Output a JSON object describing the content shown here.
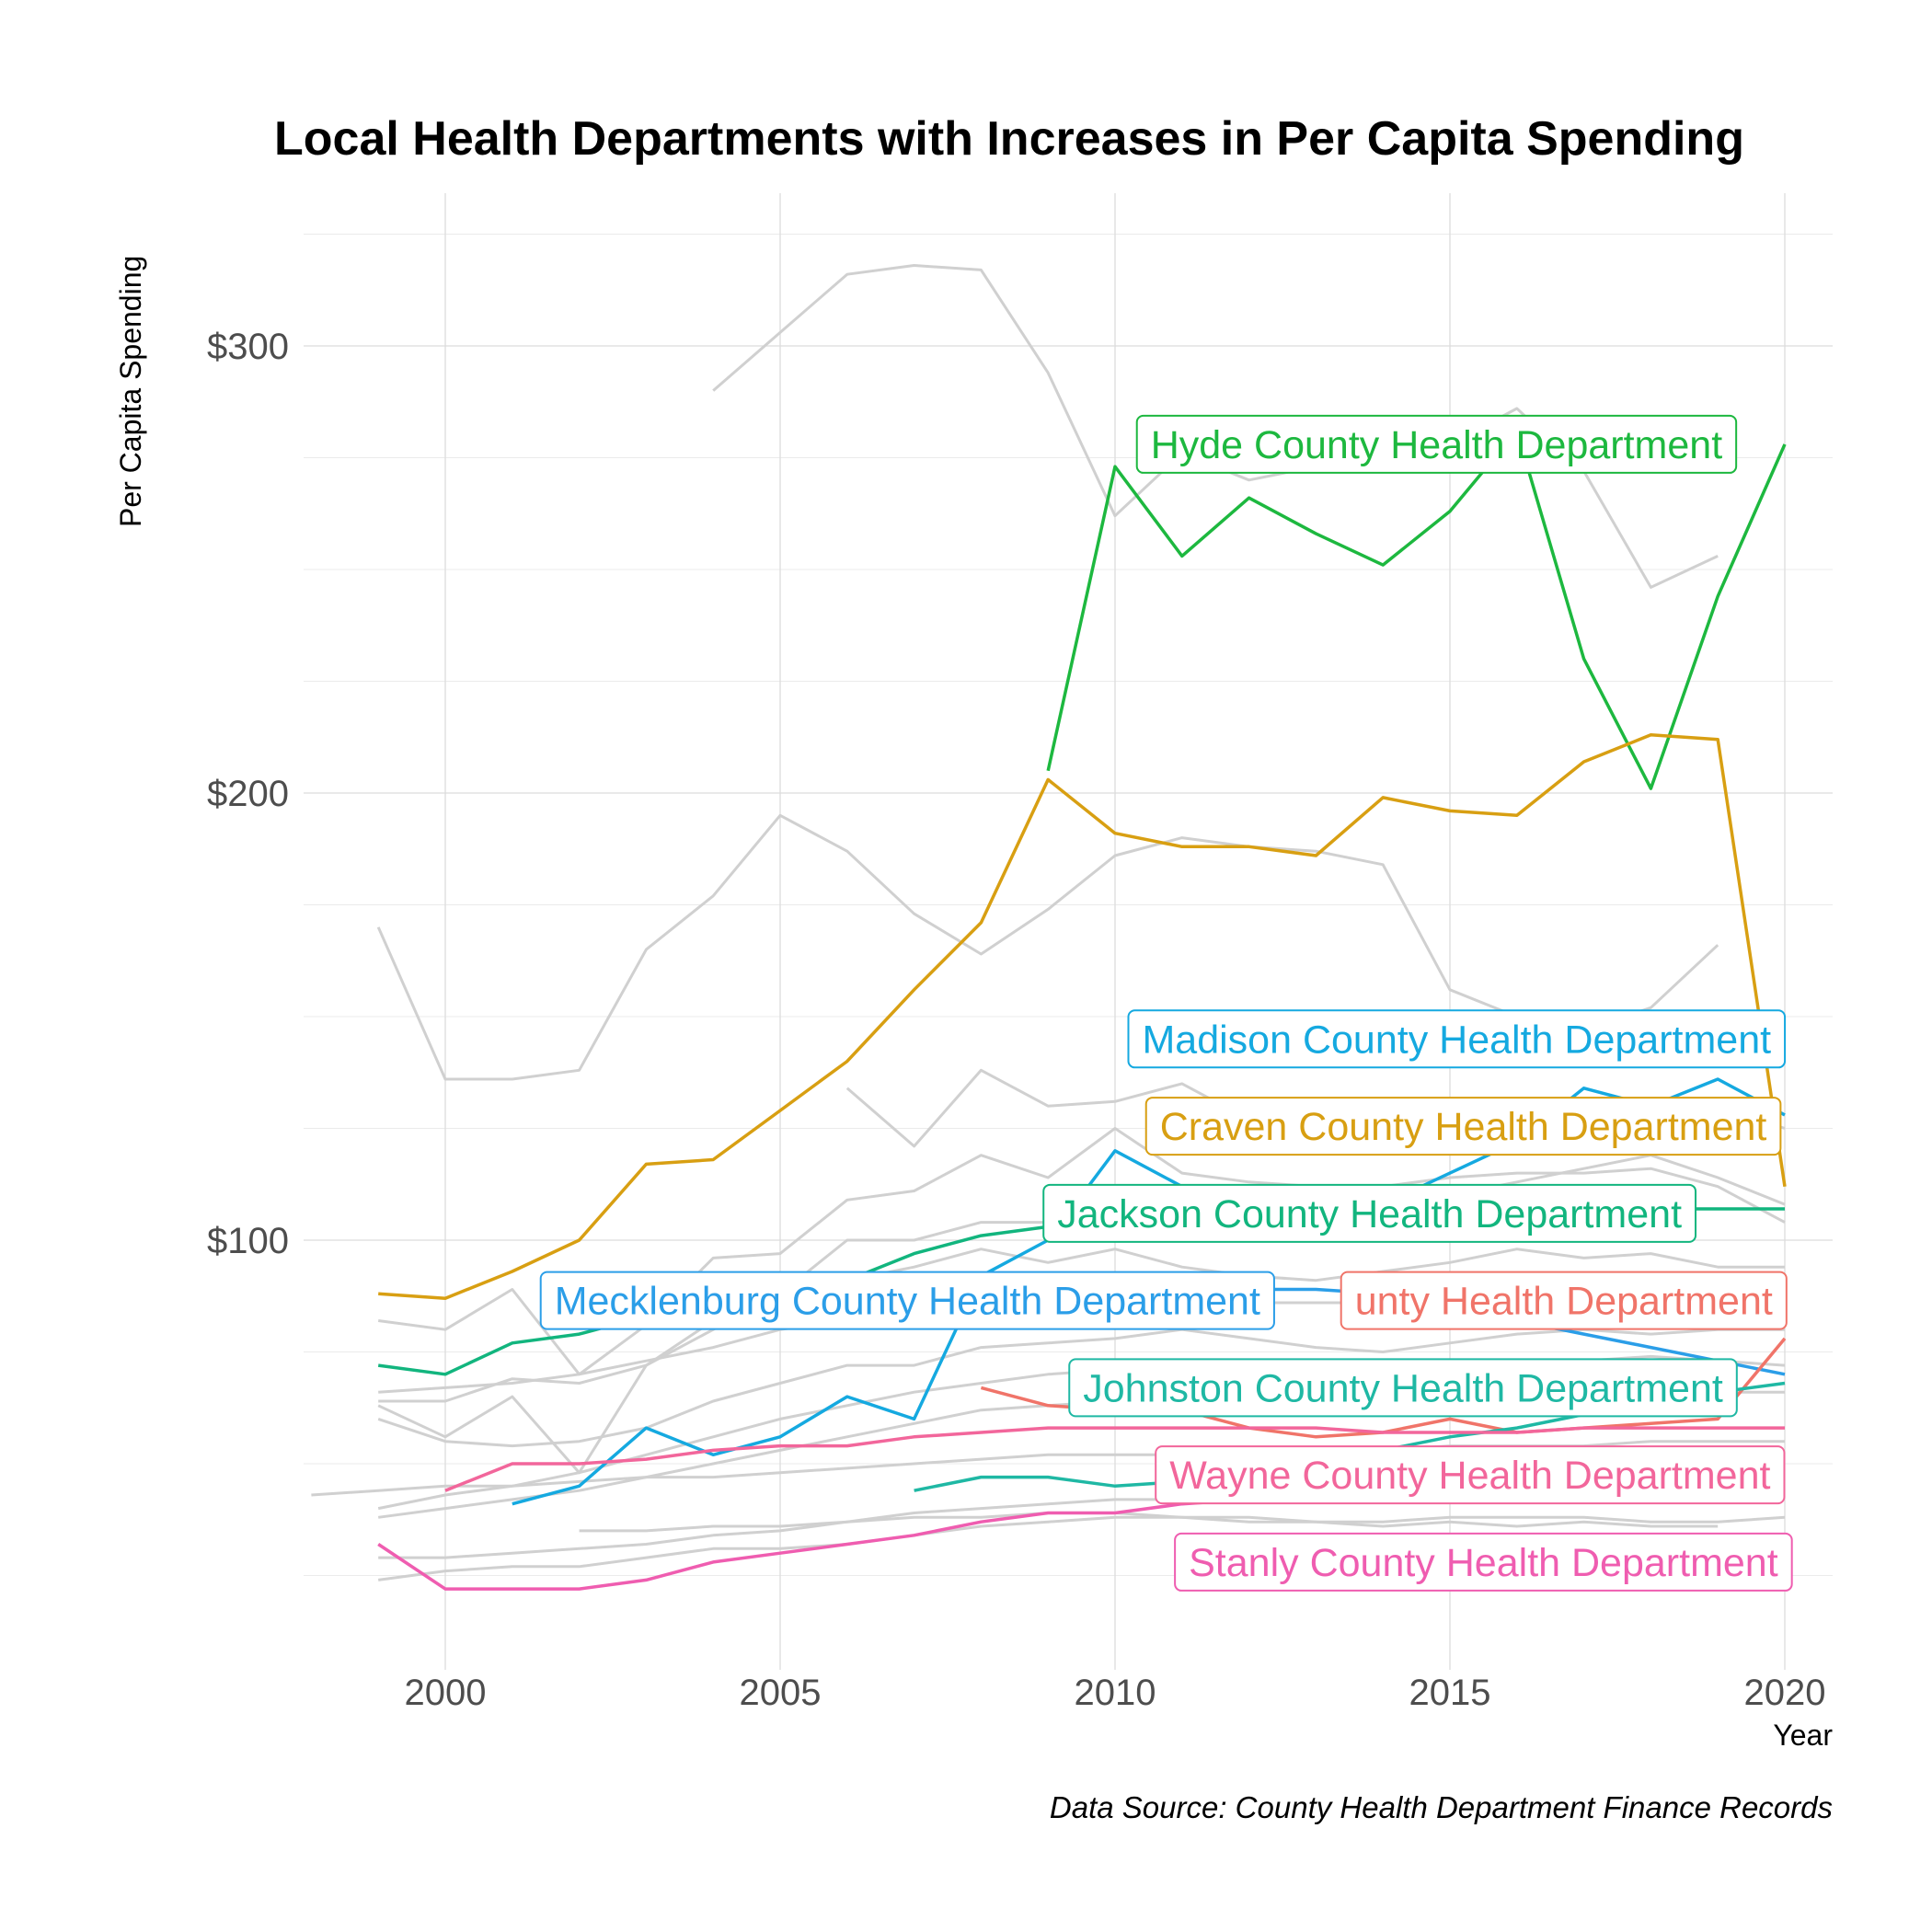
{
  "chart_data": {
    "type": "line",
    "title": "Local Health Departments with Increases in Per Capita Spending",
    "xlabel": "Year",
    "ylabel": "Per Capita Spending",
    "caption": "Data Source: County Health Department Finance Records",
    "xlim": [
      1997,
      2021
    ],
    "ylim": [
      -10,
      330
    ],
    "x_ticks": [
      2000,
      2005,
      2010,
      2015,
      2020
    ],
    "x_tick_labels": [
      "2000",
      "2005",
      "2010",
      "2015",
      "2020"
    ],
    "y_ticks": [
      100,
      200,
      300
    ],
    "y_tick_labels": [
      "$100",
      "$200",
      "$300"
    ],
    "grid": true,
    "legend": "none",
    "series": [
      {
        "name": "Hyde County Health Department",
        "color": "#1db83f",
        "x": [
          2009,
          2010,
          2011,
          2012,
          2013,
          2014,
          2015,
          2016,
          2017,
          2018,
          2019,
          2020
        ],
        "y": [
          205,
          273,
          253,
          266,
          258,
          251,
          263,
          281,
          230,
          201,
          244,
          278
        ]
      },
      {
        "name": "Madison County Health Department",
        "color": "#15a9e0",
        "x": [
          2001,
          2002,
          2003,
          2004,
          2005,
          2006,
          2007,
          2008,
          2009,
          2010,
          2011,
          2012,
          2013,
          2014,
          2015,
          2016,
          2017,
          2018,
          2019,
          2020
        ],
        "y": [
          41,
          45,
          58,
          52,
          56,
          65,
          60,
          92,
          100,
          120,
          112,
          110,
          106,
          108,
          115,
          122,
          134,
          130,
          136,
          128
        ]
      },
      {
        "name": "Craven County Health Department",
        "color": "#d89f12",
        "x": [
          1999,
          2000,
          2001,
          2002,
          2003,
          2004,
          2005,
          2006,
          2007,
          2008,
          2009,
          2010,
          2011,
          2012,
          2013,
          2014,
          2015,
          2016,
          2017,
          2018,
          2019,
          2020
        ],
        "y": [
          88,
          87,
          93,
          100,
          117,
          118,
          129,
          140,
          156,
          171,
          203,
          191,
          188,
          188,
          186,
          199,
          196,
          195,
          207,
          213,
          212,
          112
        ]
      },
      {
        "name": "Jackson County Health Department",
        "color": "#12b57e",
        "x": [
          1999,
          2000,
          2001,
          2002,
          2003,
          2004,
          2005,
          2006,
          2007,
          2008,
          2009,
          2010,
          2011,
          2012,
          2013,
          2014,
          2015,
          2016,
          2017,
          2018,
          2019,
          2020
        ],
        "y": [
          72,
          70,
          77,
          79,
          83,
          85,
          88,
          91,
          97,
          101,
          103,
          105,
          103,
          104,
          103,
          106,
          105,
          104,
          106,
          107,
          107,
          107
        ]
      },
      {
        "name": "Mecklenburg County Health Department",
        "color": "#2b9ee8",
        "x": [
          2003,
          2004,
          2005,
          2006,
          2007,
          2008,
          2009,
          2010,
          2011,
          2012,
          2013,
          2014,
          2015,
          2016,
          2017,
          2018,
          2019,
          2020
        ],
        "y": [
          89,
          90,
          90,
          91,
          91,
          91,
          91,
          90,
          90,
          89,
          89,
          88,
          85,
          82,
          79,
          76,
          73,
          70
        ]
      },
      {
        "name": "County Health Department",
        "color": "#f07469",
        "x": [
          2008,
          2009,
          2010,
          2011,
          2012,
          2013,
          2014,
          2015,
          2016,
          2017,
          2018,
          2019,
          2020
        ],
        "y": [
          67,
          63,
          62,
          62,
          58,
          56,
          57,
          60,
          57,
          58,
          59,
          60,
          78
        ]
      },
      {
        "name": "Johnston County Health Department",
        "color": "#1fb8a4",
        "x": [
          2007,
          2008,
          2009,
          2010,
          2011,
          2012,
          2013,
          2014,
          2015,
          2016,
          2017,
          2018,
          2019,
          2020
        ],
        "y": [
          44,
          47,
          47,
          45,
          46,
          48,
          50,
          53,
          56,
          58,
          61,
          63,
          66,
          68
        ]
      },
      {
        "name": "Wayne County Health Department",
        "color": "#f2669b",
        "x": [
          2000,
          2001,
          2002,
          2003,
          2004,
          2005,
          2006,
          2007,
          2008,
          2009,
          2010,
          2011,
          2012,
          2013,
          2014,
          2015,
          2016,
          2017,
          2018,
          2019,
          2020
        ],
        "y": [
          44,
          50,
          50,
          51,
          53,
          54,
          54,
          56,
          57,
          58,
          58,
          58,
          58,
          58,
          57,
          57,
          57,
          58,
          58,
          58,
          58
        ]
      },
      {
        "name": "Stanly County Health Department",
        "color": "#ef5db0",
        "x": [
          1999,
          2000,
          2001,
          2002,
          2003,
          2004,
          2005,
          2006,
          2007,
          2008,
          2009,
          2010,
          2011,
          2012,
          2013,
          2014,
          2015,
          2016,
          2017,
          2018,
          2019,
          2020
        ],
        "y": [
          32,
          22,
          22,
          22,
          24,
          28,
          30,
          32,
          34,
          37,
          39,
          39,
          41,
          42,
          42,
          42,
          43,
          43,
          43,
          44,
          45,
          48
        ]
      }
    ],
    "labels": [
      {
        "text": "Hyde County Health Department",
        "series": 0,
        "x": 2014.8,
        "y": 278
      },
      {
        "text": "Madison County Health Department",
        "series": 1,
        "x": 2015.1,
        "y": 145
      },
      {
        "text": "Craven County Health Department",
        "series": 2,
        "x": 2015.2,
        "y": 125.5
      },
      {
        "text": "Jackson County Health Department",
        "series": 3,
        "x": 2013.8,
        "y": 106
      },
      {
        "text": "Mecklenburg County Health Department",
        "series": 4,
        "x": 2006.9,
        "y": 86.5
      },
      {
        "text": "unty Health Department",
        "series": 5,
        "x": 2016.7,
        "y": 86.5
      },
      {
        "text": "Johnston County Health Department",
        "series": 6,
        "x": 2014.3,
        "y": 67
      },
      {
        "text": "Wayne County Health Department",
        "series": 7,
        "x": 2015.3,
        "y": 47.5
      },
      {
        "text": "Stanly County Health Department",
        "series": 8,
        "x": 2015.5,
        "y": 28
      }
    ],
    "background_series": [
      {
        "x": [
          2004,
          2005,
          2006,
          2007,
          2008,
          2009,
          2010,
          2011,
          2012,
          2013,
          2014,
          2015,
          2016,
          2017,
          2018,
          2019
        ],
        "y": [
          290,
          303,
          316,
          318,
          317,
          294,
          262,
          276,
          270,
          273,
          276,
          278,
          286,
          272,
          246,
          253
        ]
      },
      {
        "x": [
          1999,
          2000,
          2001,
          2002,
          2003,
          2004,
          2005,
          2006,
          2007,
          2008,
          2009,
          2010,
          2011,
          2012,
          2013,
          2014,
          2015,
          2016,
          2017,
          2018,
          2019
        ],
        "y": [
          170,
          136,
          136,
          138,
          165,
          177,
          195,
          187,
          173,
          164,
          174,
          186,
          190,
          188,
          187,
          184,
          156,
          150,
          147,
          152,
          166
        ]
      },
      {
        "x": [
          2006,
          2007,
          2008,
          2009,
          2010,
          2011,
          2012,
          2013,
          2014,
          2015,
          2016,
          2017,
          2018,
          2019,
          2020
        ],
        "y": [
          134,
          121,
          138,
          130,
          131,
          135,
          127,
          131,
          130,
          128,
          126,
          130,
          126,
          130,
          125
        ]
      },
      {
        "x": [
          1999,
          2000,
          2001,
          2002,
          2003,
          2004,
          2005,
          2006,
          2007,
          2008,
          2009,
          2010,
          2011,
          2012,
          2013,
          2014,
          2015,
          2016,
          2017,
          2018,
          2019,
          2020
        ],
        "y": [
          63,
          56,
          65,
          48,
          72,
          80,
          88,
          100,
          100,
          104,
          104,
          105,
          106,
          107,
          108,
          109,
          110,
          113,
          116,
          119,
          114,
          108
        ]
      },
      {
        "x": [
          1999,
          2000,
          2001,
          2002,
          2003,
          2004,
          2005,
          2006,
          2007,
          2008,
          2009,
          2010,
          2011,
          2012,
          2013,
          2014,
          2015,
          2016,
          2017,
          2018,
          2019,
          2020
        ],
        "y": [
          82,
          80,
          89,
          70,
          81,
          96,
          97,
          109,
          111,
          119,
          114,
          125,
          115,
          113,
          112,
          112,
          114,
          115,
          115,
          116,
          112,
          104
        ]
      },
      {
        "x": [
          1999,
          2000,
          2001,
          2002,
          2003,
          2004,
          2005,
          2006,
          2007,
          2008,
          2009,
          2010,
          2011,
          2012,
          2013,
          2014,
          2015,
          2016,
          2017,
          2018,
          2019,
          2020
        ],
        "y": [
          64,
          64,
          69,
          68,
          72,
          82,
          92,
          91,
          94,
          98,
          95,
          98,
          94,
          92,
          91,
          93,
          95,
          98,
          96,
          97,
          94,
          94
        ]
      },
      {
        "x": [
          1999,
          2000,
          2001,
          2002,
          2003,
          2004,
          2005,
          2006,
          2007,
          2008,
          2009,
          2010,
          2011,
          2012,
          2013,
          2014,
          2015,
          2016,
          2017,
          2018,
          2019,
          2020
        ],
        "y": [
          66,
          67,
          68,
          70,
          73,
          76,
          80,
          82,
          84,
          85,
          86,
          86,
          87,
          86,
          86,
          86,
          86,
          88,
          88,
          87,
          87,
          86
        ]
      },
      {
        "x": [
          1999,
          2000,
          2001,
          2002,
          2003,
          2004,
          2005,
          2006,
          2007,
          2008,
          2009,
          2010,
          2011,
          2012,
          2013,
          2014,
          2015,
          2016,
          2017,
          2018,
          2019,
          2020
        ],
        "y": [
          60,
          55,
          54,
          55,
          58,
          64,
          68,
          72,
          72,
          76,
          77,
          78,
          80,
          78,
          76,
          75,
          77,
          79,
          80,
          79,
          80,
          80
        ]
      },
      {
        "x": [
          1999,
          2000,
          2001,
          2002,
          2003,
          2004,
          2005,
          2006,
          2007,
          2008,
          2009,
          2010,
          2011,
          2012,
          2013,
          2014,
          2015,
          2016,
          2017,
          2018,
          2019,
          2020
        ],
        "y": [
          40,
          43,
          45,
          48,
          52,
          56,
          60,
          63,
          66,
          68,
          70,
          71,
          72,
          73,
          72,
          71,
          72,
          72,
          73,
          74,
          73,
          72
        ]
      },
      {
        "x": [
          1999,
          2000,
          2001,
          2002,
          2003,
          2004,
          2005,
          2006,
          2007,
          2008,
          2009,
          2010,
          2011,
          2012,
          2013,
          2014,
          2015,
          2016,
          2017,
          2018,
          2019,
          2020
        ],
        "y": [
          38,
          40,
          42,
          44,
          47,
          50,
          53,
          56,
          59,
          62,
          63,
          64,
          65,
          65,
          64,
          64,
          66,
          66,
          67,
          67,
          66,
          66
        ]
      },
      {
        "x": [
          1998,
          1999,
          2000,
          2001,
          2002,
          2003,
          2004,
          2005,
          2006,
          2007,
          2008,
          2009,
          2010,
          2011,
          2012,
          2013,
          2014,
          2015,
          2016,
          2017,
          2018,
          2019,
          2020
        ],
        "y": [
          43,
          44,
          45,
          45,
          46,
          47,
          47,
          48,
          49,
          50,
          51,
          52,
          52,
          52,
          53,
          53,
          53,
          54,
          54,
          54,
          55,
          55,
          55
        ]
      },
      {
        "x": [
          1999,
          2000,
          2001,
          2002,
          2003,
          2004,
          2005,
          2006,
          2007,
          2008,
          2009,
          2010,
          2011,
          2012,
          2013,
          2014,
          2015,
          2016,
          2017,
          2018,
          2019,
          2020
        ],
        "y": [
          29,
          29,
          30,
          31,
          32,
          34,
          35,
          37,
          39,
          40,
          41,
          42,
          42,
          42,
          43,
          43,
          44,
          44,
          44,
          45,
          45,
          46
        ]
      },
      {
        "x": [
          1999,
          2000,
          2001,
          2002,
          2003,
          2004,
          2005,
          2006,
          2007,
          2008,
          2009,
          2010,
          2011,
          2012,
          2013,
          2014,
          2015,
          2016,
          2017,
          2018,
          2019,
          2020
        ],
        "y": [
          24,
          26,
          27,
          27,
          29,
          31,
          31,
          32,
          34,
          36,
          37,
          38,
          38,
          37,
          37,
          37,
          38,
          38,
          38,
          37,
          37,
          38
        ]
      },
      {
        "x": [
          2002,
          2003,
          2004,
          2005,
          2006,
          2007,
          2008,
          2009,
          2010,
          2011,
          2012,
          2013,
          2014,
          2015,
          2016,
          2017,
          2018,
          2019
        ],
        "y": [
          35,
          35,
          36,
          36,
          37,
          38,
          38,
          39,
          39,
          38,
          38,
          37,
          36,
          37,
          36,
          37,
          36,
          36
        ]
      }
    ]
  }
}
